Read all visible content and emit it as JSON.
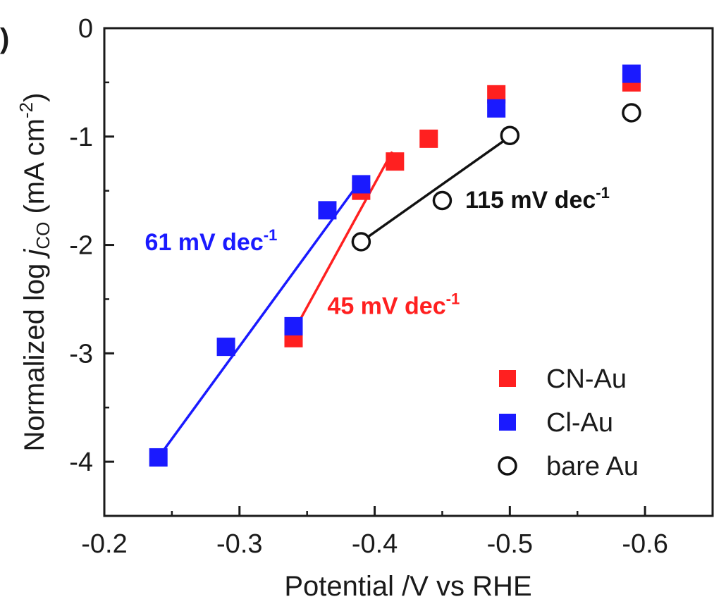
{
  "panel_label": ")",
  "chart_data": {
    "type": "scatter",
    "xlabel": "Potential /V vs RHE",
    "ylabel": {
      "prefix": "Normalized log ",
      "symbol": "j",
      "subscript": "CO",
      "unit_open": " (mA cm",
      "unit_exp": "-2",
      "unit_close": ")"
    },
    "xlim": [
      -0.2,
      -0.65
    ],
    "ylim": [
      -4.5,
      0
    ],
    "x_ticks": [
      -0.2,
      -0.3,
      -0.4,
      -0.5,
      -0.6
    ],
    "x_tick_labels": [
      "-0.2",
      "-0.3",
      "-0.4",
      "-0.5",
      "-0.6"
    ],
    "y_ticks": [
      0,
      -1,
      -2,
      -3,
      -4
    ],
    "y_tick_labels": [
      "0",
      "-1",
      "-2",
      "-3",
      "-4"
    ],
    "grid": false,
    "legend_position": "bottom-right",
    "series": [
      {
        "name": "CN-Au",
        "marker": "filled-square",
        "color": "#ff2020",
        "points": [
          {
            "x": -0.34,
            "y": -2.86
          },
          {
            "x": -0.39,
            "y": -1.5
          },
          {
            "x": -0.415,
            "y": -1.23
          },
          {
            "x": -0.44,
            "y": -1.02
          },
          {
            "x": -0.49,
            "y": -0.61
          },
          {
            "x": -0.59,
            "y": -0.5
          }
        ]
      },
      {
        "name": "Cl-Au",
        "marker": "filled-square",
        "color": "#1a1aff",
        "points": [
          {
            "x": -0.24,
            "y": -3.96
          },
          {
            "x": -0.29,
            "y": -2.94
          },
          {
            "x": -0.34,
            "y": -2.75
          },
          {
            "x": -0.365,
            "y": -1.68
          },
          {
            "x": -0.39,
            "y": -1.44
          },
          {
            "x": -0.49,
            "y": -0.74
          },
          {
            "x": -0.59,
            "y": -0.42
          }
        ]
      },
      {
        "name": "bare Au",
        "marker": "open-circle",
        "color": "#111111",
        "points": [
          {
            "x": -0.39,
            "y": -1.97
          },
          {
            "x": -0.45,
            "y": -1.59
          },
          {
            "x": -0.5,
            "y": -0.99
          },
          {
            "x": -0.59,
            "y": -0.78
          }
        ]
      }
    ],
    "fit_lines": [
      {
        "series": "Cl-Au",
        "color": "#1a1aff",
        "from": {
          "x": -0.24,
          "y": -3.96
        },
        "to": {
          "x": -0.387,
          "y": -1.45
        }
      },
      {
        "series": "CN-Au",
        "color": "#ff2020",
        "from": {
          "x": -0.34,
          "y": -2.8
        },
        "to": {
          "x": -0.413,
          "y": -1.14
        }
      },
      {
        "series": "bare Au",
        "color": "#111111",
        "from": {
          "x": -0.39,
          "y": -1.97
        },
        "to": {
          "x": -0.5,
          "y": -1.0
        }
      }
    ],
    "annotations": [
      {
        "text": "61 mV dec",
        "sup": "-1",
        "color": "#1a1aff",
        "anchor": {
          "x": -0.23,
          "y": -1.97
        }
      },
      {
        "text": "45 mV dec",
        "sup": "-1",
        "color": "#ff2020",
        "anchor": {
          "x": -0.365,
          "y": -2.56
        }
      },
      {
        "text": "115 mV dec",
        "sup": "-1",
        "color": "#111111",
        "anchor": {
          "x": -0.467,
          "y": -1.58
        }
      }
    ]
  }
}
